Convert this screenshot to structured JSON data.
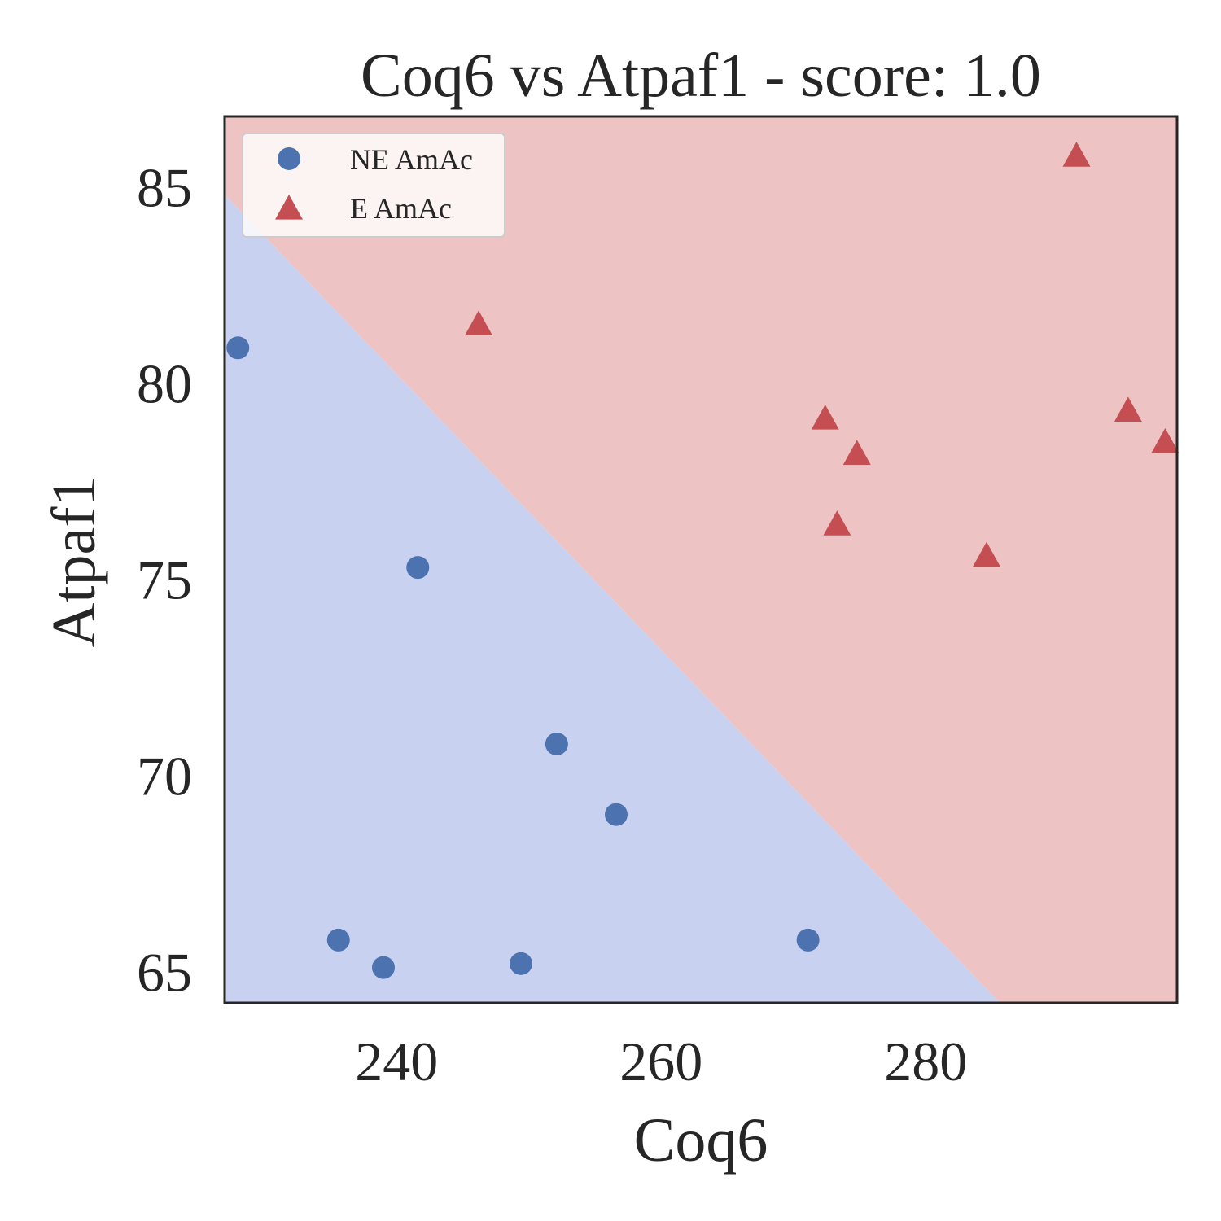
{
  "chart_data": {
    "type": "scatter",
    "title": "Coq6 vs Atpaf1 - score: 1.0",
    "xlabel": "Coq6",
    "ylabel": "Atpaf1",
    "xlim": [
      227,
      299
    ],
    "ylim": [
      64.2,
      86.8
    ],
    "xticks": [
      240,
      260,
      280
    ],
    "yticks": [
      65,
      70,
      75,
      80,
      85
    ],
    "grid": false,
    "legend_position": "upper-left",
    "decision_boundary": {
      "x": [
        227,
        285.6
      ],
      "y": [
        84.8,
        64.2
      ],
      "below_color": "#c9d1f1",
      "above_color": "#edc4c3"
    },
    "series": [
      {
        "name": "NE AmAc",
        "marker": "circle",
        "color": "#4c72b0",
        "points": [
          [
            228,
            80.9
          ],
          [
            235.6,
            65.8
          ],
          [
            239,
            65.1
          ],
          [
            241.6,
            75.3
          ],
          [
            249.4,
            65.2
          ],
          [
            252.1,
            70.8
          ],
          [
            256.6,
            69.0
          ],
          [
            271.1,
            65.8
          ]
        ]
      },
      {
        "name": "E AmAc",
        "marker": "triangle",
        "color": "#c44e52",
        "points": [
          [
            246.2,
            81.5
          ],
          [
            272.4,
            79.1
          ],
          [
            273.3,
            76.4
          ],
          [
            274.8,
            78.2
          ],
          [
            284.6,
            75.6
          ],
          [
            291.4,
            85.8
          ],
          [
            295.3,
            79.3
          ],
          [
            298.1,
            78.5
          ]
        ]
      }
    ]
  }
}
